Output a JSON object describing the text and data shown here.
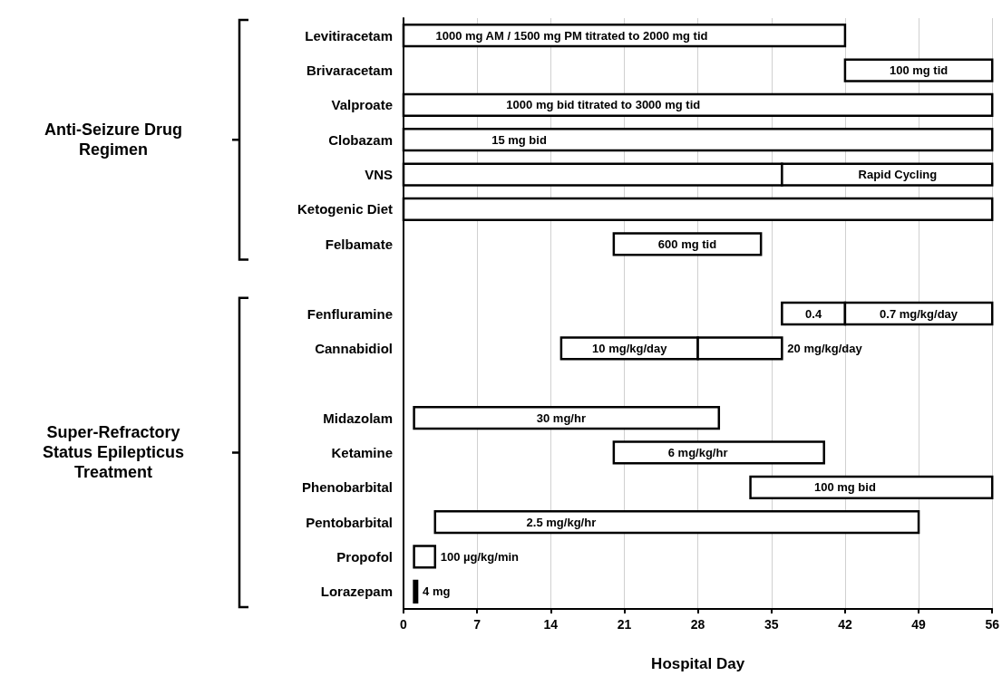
{
  "chart_data": {
    "type": "bar",
    "orientation": "horizontal",
    "xlabel": "Hospital Day",
    "xlim": [
      0,
      56
    ],
    "xticks": [
      0,
      7,
      14,
      21,
      28,
      35,
      42,
      49,
      56
    ],
    "grid": "x",
    "annotations": [
      "Anti-Seizure Drug Regimen",
      "Super-Refractory Status Epilepticus Treatment",
      {
        "text": "1000 mg AM / 1500 mg PM titrated to 2000 mg tid",
        "x": 16,
        "y": "Levitiracetam"
      },
      {
        "text": "100 mg tid",
        "x": 49,
        "y": "Brivaracetam"
      },
      {
        "text": "1000 mg bid titrated to 3000 mg tid",
        "x": 19,
        "y": "Valproate"
      },
      {
        "text": "15 mg bid",
        "x": 11,
        "y": "Clobazam"
      },
      {
        "text": "Rapid Cycling",
        "x": 47,
        "y": "VNS"
      },
      {
        "text": "600 mg tid",
        "x": 27,
        "y": "Felbamate"
      },
      {
        "text": "0.4",
        "x": 39,
        "y": "Fenfluramine"
      },
      {
        "text": "0.7 mg/kg/day",
        "x": 49,
        "y": "Fenfluramine"
      },
      {
        "text": "10 mg/kg/day",
        "x": 21.5,
        "y": "Cannabidiol"
      },
      {
        "text": "20 mg/kg/day",
        "x": 36,
        "y": "Cannabidiol"
      },
      {
        "text": "30 mg/hr",
        "x": 15,
        "y": "Midazolam"
      },
      {
        "text": "6 mg/kg/hr",
        "x": 28,
        "y": "Ketamine"
      },
      {
        "text": "100 mg bid",
        "x": 42,
        "y": "Phenobarbital"
      },
      {
        "text": "2.5 mg/kg/hr",
        "x": 15,
        "y": "Pentobarbital"
      },
      {
        "text": "100 µg/kg/min",
        "x": 3,
        "y": "Propofol"
      },
      {
        "text": "4 mg",
        "x": 1.3,
        "y": "Lorazepam"
      }
    ],
    "categories": [
      "Levitiracetam",
      "Brivaracetam",
      "Valproate",
      "Clobazam",
      "VNS",
      "Ketogenic Diet",
      "Felbamate",
      null,
      "Fenfluramine",
      "Cannabidiol",
      null,
      "Midazolam",
      "Ketamine",
      "Phenobarbital",
      "Pentobarbital",
      "Propofol",
      "Lorazepam"
    ],
    "series": [
      {
        "base": [
          0,
          42,
          0,
          0,
          0,
          0,
          20,
          null,
          36,
          15,
          null,
          1,
          20,
          33,
          3,
          1,
          1
        ],
        "values": [
          42,
          14,
          56,
          56,
          36,
          56,
          14,
          null,
          6,
          13,
          null,
          29,
          20,
          23,
          46,
          2,
          0.3
        ],
        "colors": [
          "#ffffff",
          "#ffffff",
          "#ffffff",
          "#ffffff",
          "#ffffff",
          "#ffffff",
          "#ffffff",
          null,
          "#ffffff",
          "#ffffff",
          null,
          "#ffffff",
          "#ffffff",
          "#ffffff",
          "#ffffff",
          "#ffffff",
          "#000000"
        ]
      },
      {
        "base": [
          null,
          null,
          null,
          null,
          36,
          null,
          null,
          null,
          42,
          28,
          null,
          null,
          null,
          null,
          null,
          null,
          null
        ],
        "values": [
          null,
          null,
          null,
          null,
          20,
          null,
          null,
          null,
          14,
          8,
          null,
          null,
          null,
          null,
          null,
          null,
          null
        ],
        "color": "#ffffff"
      }
    ]
  }
}
